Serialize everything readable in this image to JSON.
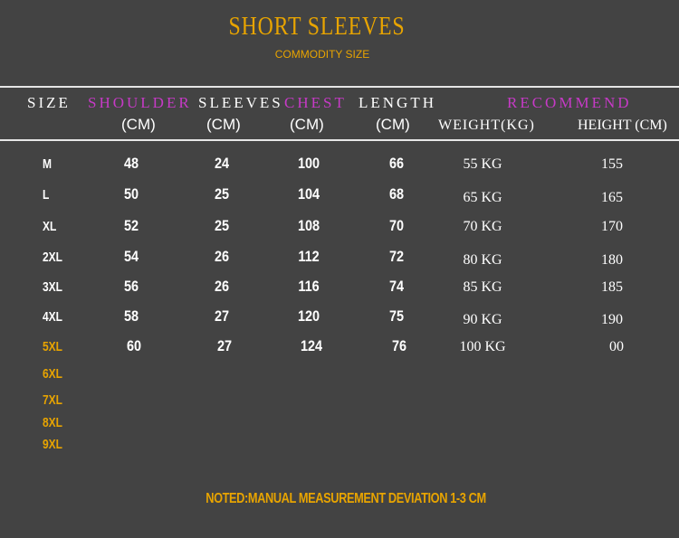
{
  "title": "SHORT SLEEVES",
  "subtitle": "COMMODITY SIZE",
  "headers": {
    "size": "SIZE",
    "shoulder": "SHOULDER",
    "sleeves": "SLEEVES",
    "chest": "CHEST",
    "length": "LENGTH",
    "recommend": "RECOMMEND",
    "unit": "(CM)",
    "weight": "WEIGHT(KG)",
    "height": "HEIGHT (CM)"
  },
  "rows": [
    {
      "size": "M",
      "shoulder": "48",
      "sleeves": "24",
      "chest": "100",
      "length": "66",
      "weight": "55 KG",
      "height": "155"
    },
    {
      "size": "L",
      "shoulder": "50",
      "sleeves": "25",
      "chest": "104",
      "length": "68",
      "weight": "65 KG",
      "height": "165"
    },
    {
      "size": "XL",
      "shoulder": "52",
      "sleeves": "25",
      "chest": "108",
      "length": "70",
      "weight": "70 KG",
      "height": "170"
    },
    {
      "size": "2XL",
      "shoulder": "54",
      "sleeves": "26",
      "chest": "112",
      "length": "72",
      "weight": "80 KG",
      "height": "180"
    },
    {
      "size": "3XL",
      "shoulder": "56",
      "sleeves": "26",
      "chest": "116",
      "length": "74",
      "weight": "85 KG",
      "height": "185"
    },
    {
      "size": "4XL",
      "shoulder": "58",
      "sleeves": "27",
      "chest": "120",
      "length": "75",
      "weight": "90 KG",
      "height": "190"
    },
    {
      "size": "5XL",
      "shoulder": "60",
      "sleeves": "27",
      "chest": "124",
      "length": "76",
      "weight": "100 KG",
      "height": "00"
    },
    {
      "size": "6XL"
    },
    {
      "size": "7XL"
    },
    {
      "size": "8XL"
    },
    {
      "size": "9XL"
    }
  ],
  "note": "NOTED:MANUAL MEASUREMENT DEVIATION 1-3 CM",
  "colors": {
    "background": "#434343",
    "gold": "#e8a400",
    "magenta": "#c63ac6"
  }
}
